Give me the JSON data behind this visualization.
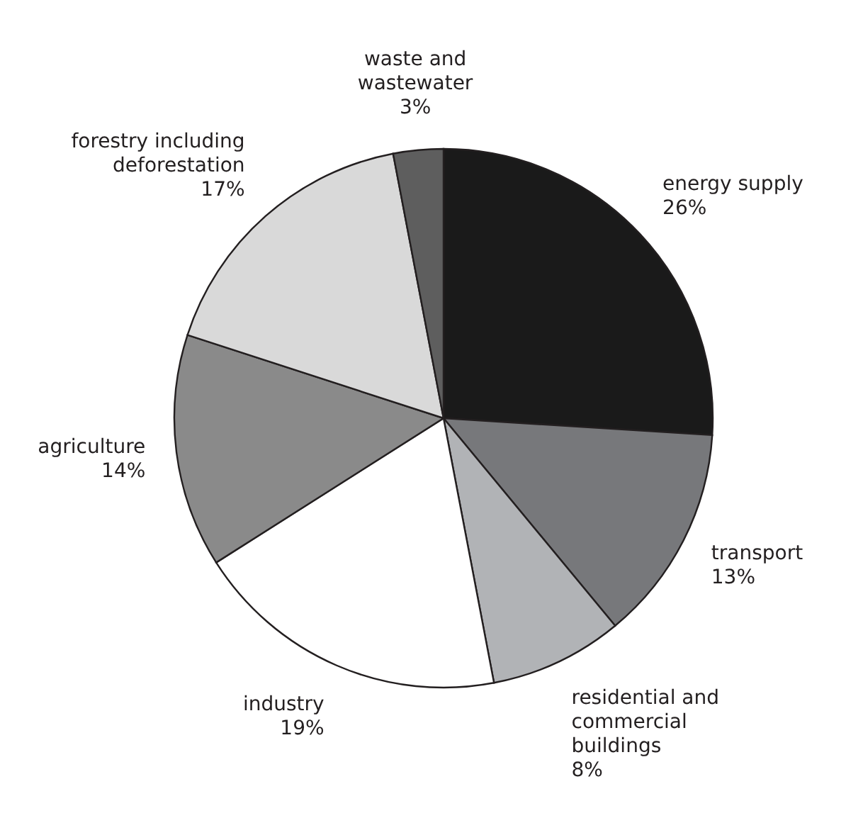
{
  "chart_data": {
    "type": "pie",
    "categories": [
      "energy supply",
      "transport",
      "residential and commercial buildings",
      "industry",
      "agriculture",
      "forestry including deforestation",
      "waste and wastewater"
    ],
    "values": [
      26,
      13,
      8,
      19,
      14,
      17,
      3
    ],
    "value_labels": [
      "26%",
      "13%",
      "8%",
      "19%",
      "14%",
      "17%",
      "3%"
    ],
    "colors": [
      "#1a1a1a",
      "#77787b",
      "#b1b3b6",
      "#ffffff",
      "#8a8a8a",
      "#d9d9d9",
      "#5e5e5e"
    ]
  }
}
